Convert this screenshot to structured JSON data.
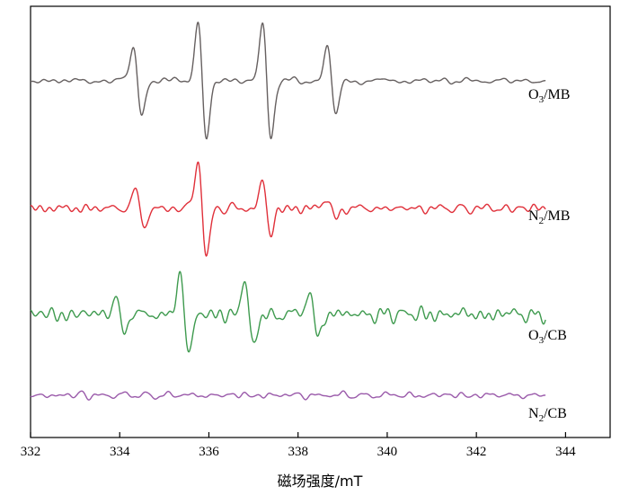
{
  "chart_data": {
    "type": "line",
    "title": "",
    "xlabel": "磁场强度/mT",
    "ylabel": "",
    "xlim": [
      332,
      345
    ],
    "xticks": [
      "332",
      "334",
      "336",
      "338",
      "340",
      "342",
      "344"
    ],
    "grid": false,
    "legend": "none",
    "y_offset_stacked": true,
    "series": [
      {
        "name": "O3/MB",
        "label_parts": {
          "main": "O",
          "sub": "3",
          "rest": "/MB"
        },
        "color": "#666060",
        "baseline_offset": 0,
        "amplitude_scale": 1.0,
        "peaks": [
          {
            "x": 334.4,
            "amplitude": 0.6
          },
          {
            "x": 335.85,
            "amplitude": 1.0
          },
          {
            "x": 337.3,
            "amplitude": 1.0
          },
          {
            "x": 338.75,
            "amplitude": 0.6
          }
        ],
        "noise": 0.06,
        "seed": 11
      },
      {
        "name": "N2/MB",
        "label_parts": {
          "main": "N",
          "sub": "2",
          "rest": "/MB"
        },
        "color": "#e0303a",
        "baseline_offset": -1,
        "amplitude_scale": 0.62,
        "peaks": [
          {
            "x": 334.45,
            "amplitude": 0.35
          },
          {
            "x": 335.85,
            "amplitude": 0.82
          },
          {
            "x": 337.3,
            "amplitude": 0.45
          },
          {
            "x": 338.75,
            "amplitude": 0.2
          }
        ],
        "noise": 0.09,
        "seed": 23
      },
      {
        "name": "O3/CB",
        "label_parts": {
          "main": "O",
          "sub": "3",
          "rest": "/CB"
        },
        "color": "#3e9a4e",
        "baseline_offset": -2,
        "amplitude_scale": 0.62,
        "peaks": [
          {
            "x": 334.0,
            "amplitude": 0.35
          },
          {
            "x": 335.45,
            "amplitude": 0.7
          },
          {
            "x": 336.9,
            "amplitude": 0.6
          },
          {
            "x": 338.35,
            "amplitude": 0.35
          }
        ],
        "noise": 0.13,
        "seed": 37
      },
      {
        "name": "N2/CB",
        "label_parts": {
          "main": "N",
          "sub": "2",
          "rest": "/CB"
        },
        "color": "#9a5aaa",
        "baseline_offset": -3,
        "amplitude_scale": 0.25,
        "peaks": [],
        "noise": 0.06,
        "seed": 51
      }
    ]
  }
}
